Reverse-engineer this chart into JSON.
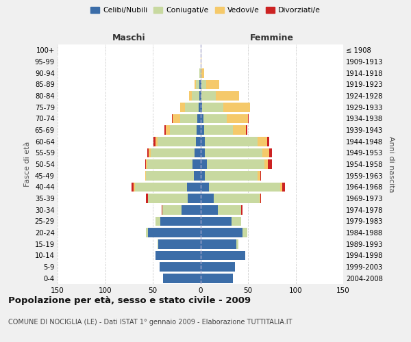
{
  "age_groups": [
    "0-4",
    "5-9",
    "10-14",
    "15-19",
    "20-24",
    "25-29",
    "30-34",
    "35-39",
    "40-44",
    "45-49",
    "50-54",
    "55-59",
    "60-64",
    "65-69",
    "70-74",
    "75-79",
    "80-84",
    "85-89",
    "90-94",
    "95-99",
    "100+"
  ],
  "birth_years": [
    "2004-2008",
    "1999-2003",
    "1994-1998",
    "1989-1993",
    "1984-1988",
    "1979-1983",
    "1974-1978",
    "1969-1973",
    "1964-1968",
    "1959-1963",
    "1954-1958",
    "1949-1953",
    "1944-1948",
    "1939-1943",
    "1934-1938",
    "1929-1933",
    "1924-1928",
    "1919-1923",
    "1914-1918",
    "1909-1913",
    "≤ 1908"
  ],
  "colors": {
    "celibe": "#3B6DA8",
    "coniugato": "#C8D9A0",
    "vedovo": "#F5C96A",
    "divorziato": "#CC2222"
  },
  "male": {
    "celibe": [
      39,
      43,
      47,
      44,
      55,
      42,
      20,
      13,
      14,
      7,
      8,
      6,
      5,
      4,
      3,
      2,
      1,
      1,
      0,
      0,
      0
    ],
    "coniugato": [
      0,
      0,
      0,
      1,
      2,
      5,
      20,
      42,
      55,
      50,
      48,
      46,
      40,
      28,
      18,
      14,
      8,
      4,
      1,
      0,
      0
    ],
    "vedovo": [
      0,
      0,
      0,
      0,
      0,
      0,
      0,
      0,
      1,
      1,
      1,
      2,
      2,
      4,
      8,
      5,
      3,
      1,
      0,
      0,
      0
    ],
    "divorziato": [
      0,
      0,
      0,
      0,
      0,
      0,
      1,
      2,
      2,
      0,
      1,
      2,
      2,
      2,
      1,
      0,
      0,
      0,
      0,
      0,
      0
    ]
  },
  "female": {
    "nubile": [
      34,
      36,
      47,
      38,
      44,
      33,
      18,
      14,
      9,
      5,
      7,
      5,
      5,
      4,
      3,
      2,
      1,
      1,
      0,
      0,
      0
    ],
    "coniugata": [
      0,
      0,
      0,
      2,
      5,
      10,
      25,
      48,
      75,
      55,
      60,
      60,
      55,
      30,
      25,
      22,
      15,
      5,
      1,
      0,
      0
    ],
    "vedova": [
      0,
      0,
      0,
      0,
      0,
      0,
      0,
      1,
      2,
      3,
      4,
      7,
      10,
      14,
      22,
      28,
      25,
      14,
      3,
      1,
      0
    ],
    "divorziata": [
      0,
      0,
      0,
      0,
      0,
      0,
      1,
      1,
      3,
      1,
      4,
      3,
      2,
      1,
      1,
      0,
      0,
      0,
      0,
      0,
      0
    ]
  },
  "xlim": 150,
  "title": "Popolazione per età, sesso e stato civile - 2009",
  "subtitle": "COMUNE DI NOCIGLIA (LE) - Dati ISTAT 1° gennaio 2009 - Elaborazione TUTTITALIA.IT",
  "ylabel_left": "Fasce di età",
  "ylabel_right": "Anni di nascita",
  "xlabel_left": "Maschi",
  "xlabel_right": "Femmine",
  "bg_color": "#f0f0f0",
  "plot_bg": "#ffffff"
}
